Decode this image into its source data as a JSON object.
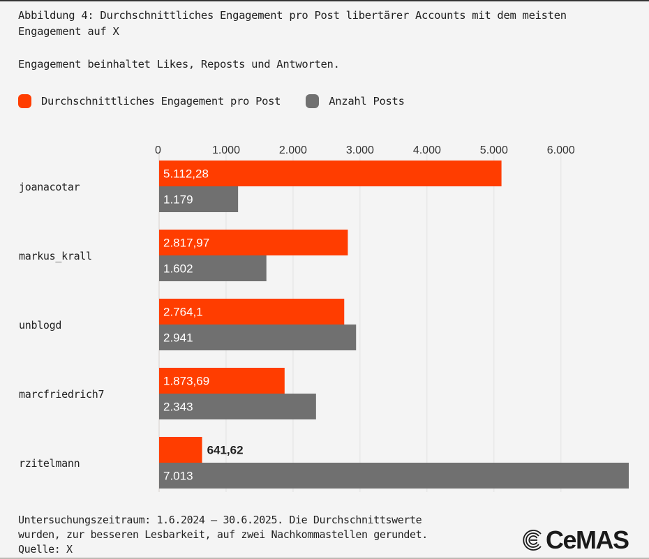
{
  "title": "Abbildung 4: Durchschnittliches Engagement pro Post libertärer Accounts mit dem meisten Engagement auf X",
  "subtitle": "Engagement beinhaltet Likes, Reposts und Antworten.",
  "legend": [
    {
      "label": "Durchschnittliches Engagement pro Post",
      "color": "#ff3d00"
    },
    {
      "label": "Anzahl Posts",
      "color": "#707070"
    }
  ],
  "footnote": {
    "lines": [
      "Untersuchungszeitraum: 1.6.2024 – 30.6.2025. Die Durchschnittswerte",
      "wurden, zur besseren Lesbarkeit, auf zwei Nachkommastellen gerundet.",
      "Quelle: X"
    ]
  },
  "logo": {
    "text": "CeMAS",
    "icon": "cemas-spiral-icon"
  },
  "chart_data": {
    "type": "bar",
    "orientation": "horizontal",
    "title": "Abbildung 4: Durchschnittliches Engagement pro Post libertärer Accounts mit dem meisten Engagement auf X",
    "xlabel": "",
    "ylabel": "",
    "xlim": [
      0,
      7013
    ],
    "ticks": [
      0,
      1000,
      2000,
      3000,
      4000,
      5000,
      6000
    ],
    "tick_labels": [
      "0",
      "1.000",
      "2.000",
      "3.000",
      "4.000",
      "5.000",
      "6.000"
    ],
    "tick_position": "top",
    "grid": true,
    "legend_position": "top-left",
    "categories": [
      "joanacotar",
      "markus_krall",
      "unblogd",
      "marcfriedrich7",
      "rzitelmann"
    ],
    "series": [
      {
        "name": "Durchschnittliches Engagement pro Post",
        "color": "#ff3d00",
        "values": [
          5112.28,
          2817.97,
          2764.1,
          1873.69,
          641.62
        ],
        "labels": [
          "5.112,28",
          "2.817,97",
          "2.764,1",
          "1.873,69",
          "641,62"
        ]
      },
      {
        "name": "Anzahl Posts",
        "color": "#707070",
        "values": [
          1179,
          1602,
          2941,
          2343,
          7013
        ],
        "labels": [
          "1.179",
          "1.602",
          "2.941",
          "2.343",
          "7.013"
        ]
      }
    ]
  }
}
